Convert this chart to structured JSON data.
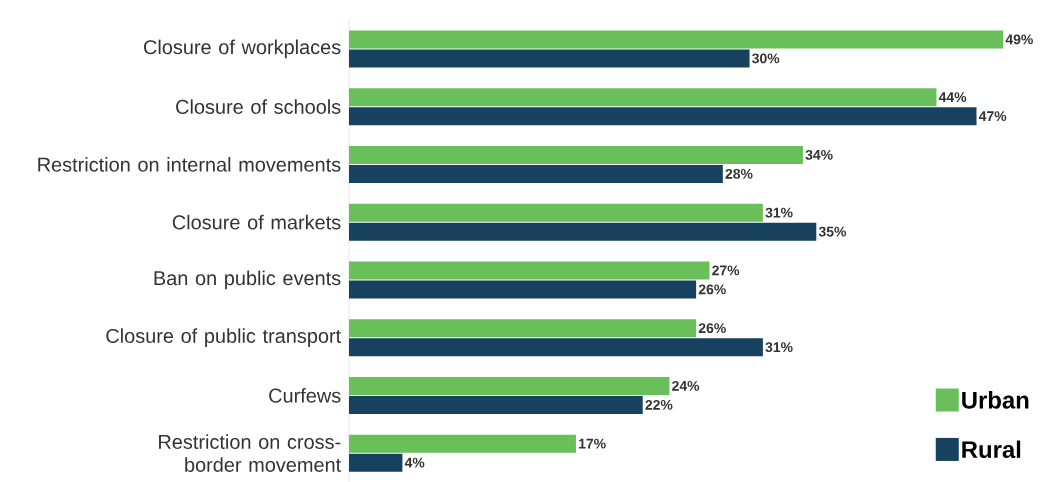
{
  "chart_data": {
    "type": "bar",
    "orientation": "horizontal",
    "categories": [
      "Closure of workplaces",
      "Closure of schools",
      "Restriction on internal movements",
      "Closure of markets",
      "Ban on public events",
      "Closure of public transport",
      "Curfews",
      "Restriction on cross-border movement"
    ],
    "series": [
      {
        "name": "Urban",
        "color": "#6abf5b",
        "values": [
          49,
          44,
          34,
          31,
          27,
          26,
          24,
          17
        ],
        "value_labels": [
          "49%",
          "44%",
          "34%",
          "31%",
          "27%",
          "26%",
          "24%",
          "17%"
        ]
      },
      {
        "name": "Rural",
        "color": "#16415f",
        "values": [
          30,
          47,
          28,
          35,
          26,
          31,
          22,
          4
        ],
        "value_labels": [
          "30%",
          "47%",
          "28%",
          "35%",
          "26%",
          "31%",
          "22%",
          "4%"
        ]
      }
    ],
    "legend": "bottom right"
  }
}
